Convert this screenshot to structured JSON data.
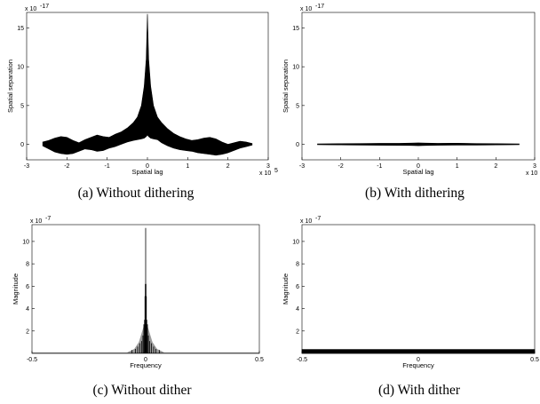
{
  "chart_data": [
    {
      "type": "area",
      "caption": "(a)  Without dithering",
      "xlabel": "Spatial lag",
      "ylabel": "Spatial separation",
      "x_exponent": "x 10",
      "x_exponent_power": "5",
      "y_exponent": "x 10",
      "y_exponent_power": "-17",
      "xlim": [
        -3,
        3
      ],
      "ylim": [
        -2,
        17
      ],
      "xticks": [
        -3,
        -2,
        -1,
        0,
        1,
        2,
        3
      ],
      "yticks": [
        0,
        5,
        10,
        15
      ],
      "grid": false,
      "series": [
        {
          "color": "#000000",
          "x": [
            -2.6,
            -2.45,
            -2.3,
            -2.15,
            -2.0,
            -1.85,
            -1.7,
            -1.55,
            -1.4,
            -1.25,
            -1.1,
            -0.95,
            -0.8,
            -0.65,
            -0.5,
            -0.35,
            -0.25,
            -0.15,
            -0.08,
            -0.03,
            0.0,
            0.03,
            0.08,
            0.15,
            0.25,
            0.35,
            0.5,
            0.65,
            0.8,
            0.95,
            1.1,
            1.25,
            1.4,
            1.55,
            1.7,
            1.85,
            2.0,
            2.15,
            2.3,
            2.45,
            2.6
          ],
          "upper": [
            0.3,
            0.5,
            0.8,
            1.0,
            0.9,
            0.5,
            0.2,
            0.6,
            0.9,
            1.2,
            1.0,
            0.9,
            1.3,
            1.6,
            2.1,
            2.8,
            3.5,
            5.0,
            7.5,
            11.0,
            16.8,
            11.0,
            7.5,
            5.0,
            3.5,
            2.8,
            2.0,
            1.4,
            1.0,
            0.7,
            0.5,
            0.6,
            0.8,
            0.9,
            0.7,
            0.3,
            0.0,
            0.2,
            0.4,
            0.3,
            0.1
          ],
          "lower": [
            -0.2,
            -0.6,
            -1.0,
            -1.2,
            -1.3,
            -1.2,
            -0.9,
            -0.6,
            -0.7,
            -0.9,
            -0.8,
            -0.5,
            -0.3,
            0.0,
            0.3,
            0.5,
            0.6,
            0.7,
            0.8,
            1.0,
            1.2,
            1.0,
            0.8,
            0.7,
            0.6,
            0.2,
            -0.2,
            -0.5,
            -0.7,
            -0.8,
            -0.9,
            -1.1,
            -1.2,
            -1.3,
            -1.4,
            -1.3,
            -1.1,
            -0.8,
            -0.5,
            -0.3,
            -0.1
          ]
        }
      ]
    },
    {
      "type": "area",
      "caption": "(b)  With dithering",
      "xlabel": "Spatial lag",
      "ylabel": "Spatial separation",
      "x_exponent": "x 10",
      "x_exponent_power": "5",
      "y_exponent": "x 10",
      "y_exponent_power": "-17",
      "xlim": [
        -3,
        3
      ],
      "ylim": [
        -2,
        17
      ],
      "xticks": [
        -3,
        -2,
        -1,
        0,
        1,
        2,
        3
      ],
      "yticks": [
        0,
        5,
        10,
        15
      ],
      "grid": false,
      "series": [
        {
          "color": "#000000",
          "x": [
            -2.6,
            -2.0,
            -1.5,
            -1.0,
            -0.5,
            -0.2,
            0.0,
            0.2,
            0.5,
            1.0,
            1.5,
            2.0,
            2.6
          ],
          "upper": [
            0.05,
            0.08,
            0.1,
            0.12,
            0.12,
            0.15,
            0.18,
            0.15,
            0.12,
            0.14,
            0.1,
            0.08,
            0.05
          ],
          "lower": [
            -0.05,
            -0.08,
            -0.1,
            -0.12,
            -0.14,
            -0.15,
            -0.18,
            -0.15,
            -0.12,
            -0.1,
            -0.1,
            -0.08,
            -0.05
          ]
        }
      ]
    },
    {
      "type": "bar",
      "caption": "(c)  Without dither",
      "xlabel": "Frequency",
      "ylabel": "Magnitude",
      "y_exponent": "x 10",
      "y_exponent_power": "-7",
      "xlim": [
        -0.5,
        0.5
      ],
      "ylim": [
        0,
        11.5
      ],
      "xticks": [
        -0.5,
        0,
        0.5
      ],
      "yticks": [
        2,
        4,
        6,
        8,
        10
      ],
      "grid": false,
      "series": [
        {
          "color": "#000000",
          "x": [
            -0.06,
            -0.045,
            -0.035,
            -0.025,
            -0.018,
            -0.012,
            -0.008,
            -0.005,
            -0.003,
            -0.0015,
            0.0,
            0.0015,
            0.003,
            0.005,
            0.008,
            0.012,
            0.018,
            0.025,
            0.035,
            0.045,
            0.06
          ],
          "values": [
            0.3,
            0.4,
            0.6,
            0.9,
            1.1,
            1.6,
            2.6,
            3.0,
            5.1,
            6.2,
            11.2,
            6.2,
            5.1,
            3.0,
            2.6,
            1.6,
            1.1,
            0.9,
            0.6,
            0.4,
            0.3
          ]
        }
      ],
      "envelope": {
        "color": "#999999",
        "x": [
          -0.08,
          -0.05,
          -0.03,
          -0.015,
          0.0,
          0.015,
          0.03,
          0.05,
          0.08
        ],
        "values": [
          0.1,
          0.4,
          1.0,
          2.0,
          3.0,
          2.0,
          1.0,
          0.4,
          0.1
        ]
      }
    },
    {
      "type": "area",
      "caption": "(d)  With dither",
      "xlabel": "Frequency",
      "ylabel": "Magnitude",
      "y_exponent": "x 10",
      "y_exponent_power": "-7",
      "xlim": [
        -0.5,
        0.5
      ],
      "ylim": [
        0,
        11.5
      ],
      "xticks": [
        -0.5,
        0,
        0.5
      ],
      "yticks": [
        2,
        4,
        6,
        8,
        10
      ],
      "grid": false,
      "series": [
        {
          "color": "#000000",
          "x": [
            -0.5,
            0.5
          ],
          "upper": [
            0.35,
            0.35
          ],
          "lower": [
            0,
            0
          ]
        }
      ]
    }
  ]
}
